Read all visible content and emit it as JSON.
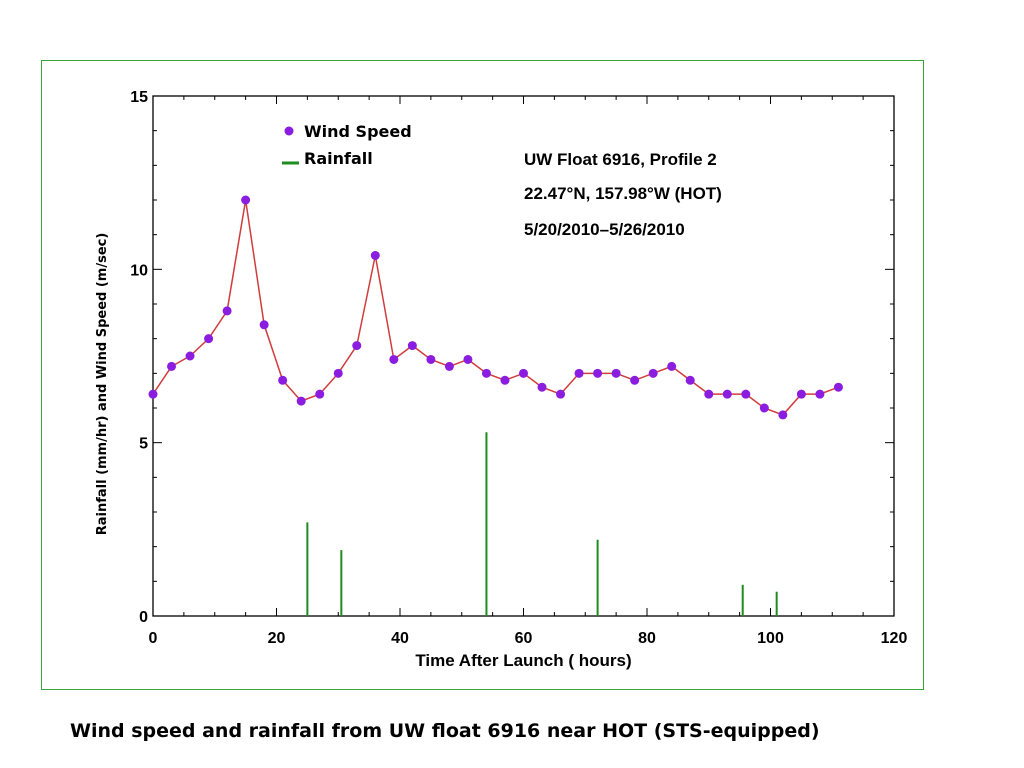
{
  "caption": "Wind speed and rainfall from UW float 6916 near HOT (STS-equipped)",
  "chart_data": {
    "type": "line",
    "title": "",
    "xlabel": "Time After Launch ( hours)",
    "ylabel": "Rainfall (mm/hr) and Wind Speed (m/sec)",
    "xlim": [
      0,
      120
    ],
    "ylim": [
      0,
      15
    ],
    "x_ticks": [
      "0",
      "20",
      "40",
      "60",
      "80",
      "100",
      "120"
    ],
    "y_ticks": [
      "0",
      "5",
      "10",
      "15"
    ],
    "grid": false,
    "legend_position": "top-left",
    "annotations": [
      "UW Float 6916, Profile 2",
      "22.47°N, 157.98°W  (HOT)",
      "5/20/2010–5/26/2010"
    ],
    "series": [
      {
        "name": "Wind Speed",
        "type": "line-markers",
        "color": "#8a1de0",
        "line_color": "#d03c3c",
        "x": [
          0,
          3,
          6,
          9,
          12,
          15,
          18,
          21,
          24,
          27,
          30,
          33,
          36,
          39,
          42,
          45,
          48,
          51,
          54,
          57,
          60,
          63,
          66,
          69,
          72,
          75,
          78,
          81,
          84,
          87,
          90,
          93,
          96,
          99,
          102,
          105,
          108,
          111
        ],
        "y": [
          6.4,
          7.2,
          7.5,
          8.0,
          8.8,
          12.0,
          8.4,
          6.8,
          6.2,
          6.4,
          7.0,
          7.8,
          10.4,
          7.4,
          7.8,
          7.4,
          7.2,
          7.4,
          7.0,
          6.8,
          7.0,
          6.6,
          6.4,
          7.0,
          7.0,
          7.0,
          6.8,
          7.0,
          7.2,
          6.8,
          6.4,
          6.4,
          6.4,
          6.0,
          5.8,
          6.4,
          6.4,
          6.6
        ]
      },
      {
        "name": "Rainfall",
        "type": "bar",
        "color": "#1e8c1e",
        "x": [
          25,
          30.5,
          54,
          72,
          95.5,
          101
        ],
        "y": [
          2.7,
          1.9,
          5.3,
          2.2,
          0.9,
          0.7
        ]
      }
    ]
  }
}
